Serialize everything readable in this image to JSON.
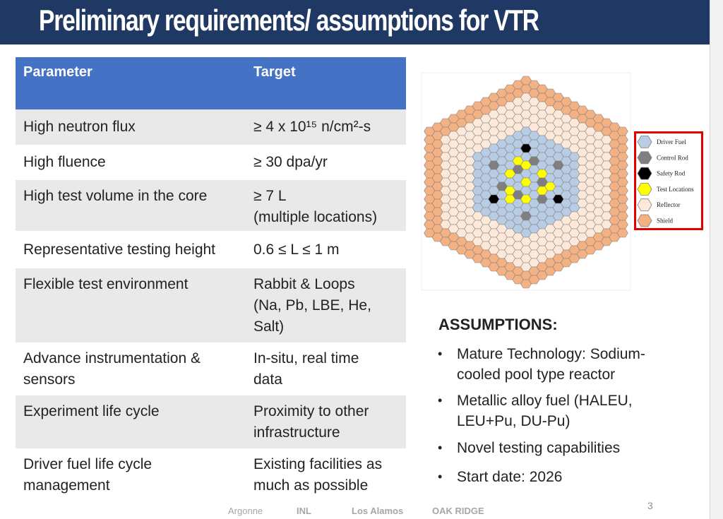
{
  "title": "Preliminary requirements/ assumptions for VTR",
  "table": {
    "header": [
      "Parameter",
      "Target"
    ],
    "rows": [
      [
        [
          "High neutron flux"
        ],
        [
          "≥ 4 x 10¹⁵ n/cm²-s"
        ]
      ],
      [
        [
          "High fluence"
        ],
        [
          "≥ 30 dpa/yr"
        ]
      ],
      [
        [
          "High test volume in the core"
        ],
        [
          "≥ 7 L",
          "(multiple locations)"
        ]
      ],
      [
        [
          "Representative testing height"
        ],
        [
          "0.6 ≤ L ≤ 1 m"
        ]
      ],
      [
        [
          "Flexible test environment"
        ],
        [
          "Rabbit & Loops",
          "(Na, Pb, LBE, He,",
          "Salt)"
        ]
      ],
      [
        [
          "Advance instrumentation &",
          "sensors"
        ],
        [
          "In-situ, real time",
          "data"
        ]
      ],
      [
        [
          "Experiment life cycle"
        ],
        [
          "Proximity to other",
          "infrastructure"
        ]
      ],
      [
        [
          "Driver fuel life cycle",
          "management"
        ],
        [
          "Existing facilities as",
          "much as possible"
        ]
      ]
    ]
  },
  "legend": [
    {
      "label": "Driver Fuel",
      "color": "#b8cce4"
    },
    {
      "label": "Control Rod",
      "color": "#7f7f7f"
    },
    {
      "label": "Safety Rod",
      "color": "#000000"
    },
    {
      "label": "Test Locations",
      "color": "#ffff00"
    },
    {
      "label": "Reflector",
      "color": "#fde9d9"
    },
    {
      "label": "Shield",
      "color": "#f4b183"
    }
  ],
  "assumptions": {
    "heading": "ASSUMPTIONS:",
    "items": [
      [
        "Mature Technology:  Sodium-",
        "cooled pool type reactor"
      ],
      [
        "Metallic alloy fuel (HALEU,",
        "LEU+Pu, DU-Pu)"
      ],
      [
        "Novel testing capabilities"
      ],
      [
        "Start date: 2026"
      ]
    ]
  },
  "footer": {
    "logos": [
      "Argonne",
      "INL",
      "Los Alamos",
      "OAK RIDGE"
    ],
    "page": "3"
  }
}
